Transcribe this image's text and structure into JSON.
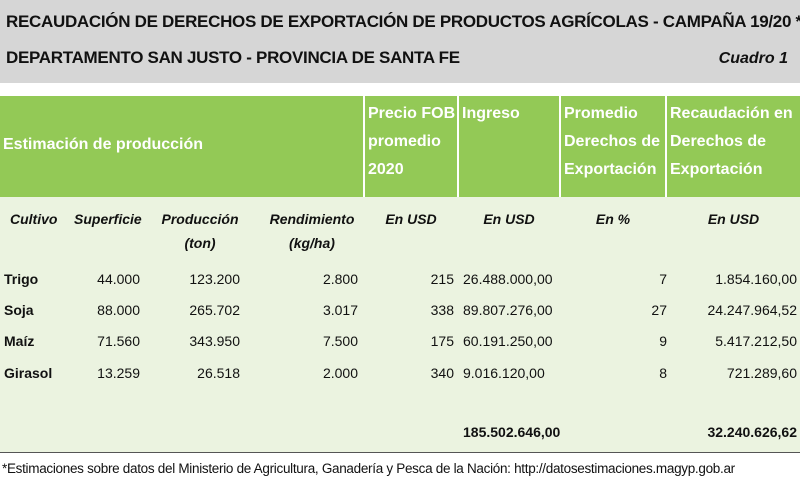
{
  "header": {
    "title_line1": "RECAUDACIÓN DE DERECHOS DE EXPORTACIÓN DE PRODUCTOS AGRÍCOLAS - CAMPAÑA 19/20 *",
    "title_line2": "DEPARTAMENTO SAN JUSTO - PROVINCIA DE SANTA FE",
    "cuadro": "Cuadro 1"
  },
  "group_headers": {
    "estimacion": "Estimación de producción",
    "precio_fob": [
      "Precio FOB",
      "promedio",
      "2020"
    ],
    "ingreso": [
      "Ingreso"
    ],
    "promedio_derechos": [
      "Promedio",
      "Derechos de",
      "Exportación"
    ],
    "recaudacion": [
      "Recaudación en",
      "Derechos de",
      "Exportación"
    ]
  },
  "sub_headers": {
    "cultivo": "Cultivo",
    "superficie": "Superficie",
    "produccion": [
      "Producción",
      "(ton)"
    ],
    "rendimiento": [
      "Rendimiento",
      "(kg/ha)"
    ],
    "precio_unit": "En USD",
    "ingreso_unit": "En USD",
    "promedio_unit": "En %",
    "recaudacion_unit": "En USD"
  },
  "rows": [
    {
      "cultivo": "Trigo",
      "superficie": "44.000",
      "produccion": "123.200",
      "rendimiento": "2.800",
      "precio": "215",
      "ingreso": "26.488.000,00",
      "promedio": "7",
      "recaudacion": "1.854.160,00"
    },
    {
      "cultivo": "Soja",
      "superficie": "88.000",
      "produccion": "265.702",
      "rendimiento": "3.017",
      "precio": "338",
      "ingreso": "89.807.276,00",
      "promedio": "27",
      "recaudacion": "24.247.964,52"
    },
    {
      "cultivo": "Maíz",
      "superficie": "71.560",
      "produccion": "343.950",
      "rendimiento": "7.500",
      "precio": "175",
      "ingreso": "60.191.250,00",
      "promedio": "9",
      "recaudacion": "5.417.212,50"
    },
    {
      "cultivo": "Girasol",
      "superficie": "13.259",
      "produccion": "26.518",
      "rendimiento": "2.000",
      "precio": "340",
      "ingreso": "9.016.120,00",
      "promedio": "8",
      "recaudacion": "721.289,60"
    }
  ],
  "totals": {
    "ingreso": "185.502.646,00",
    "recaudacion": "32.240.626,62"
  },
  "footnote": "*Estimaciones sobre datos del Ministerio de Agricultura, Ganadería y Pesca de la Nación: http://datosestimaciones.magyp.gob.ar"
}
